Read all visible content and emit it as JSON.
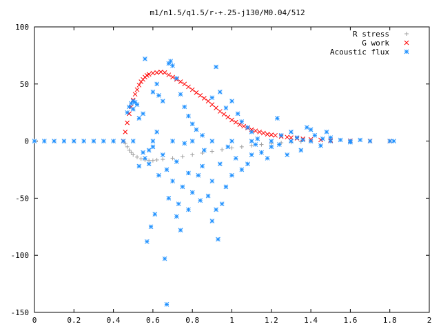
{
  "chart_data": {
    "type": "scatter",
    "title": "m1/n1.5/q1.5/r-+.25-j130/M0.04/512",
    "xlabel": "",
    "ylabel": "",
    "xlim": [
      0,
      2
    ],
    "ylim": [
      -150,
      100
    ],
    "xticks": [
      0,
      0.2,
      0.4,
      0.6,
      0.8,
      1,
      1.2,
      1.4,
      1.6,
      1.8,
      2
    ],
    "xtick_labels": [
      "0",
      "0.2",
      "0.4",
      "0.6",
      "0.8",
      "1",
      "1.2",
      "1.4",
      "1.6",
      "1.8",
      "2"
    ],
    "yticks": [
      -150,
      -100,
      -50,
      0,
      50,
      100
    ],
    "ytick_labels": [
      "-150",
      "-100",
      "-50",
      "0",
      "50",
      "100"
    ],
    "grid": false,
    "legend_position": "top-right",
    "series": [
      {
        "name": "R stress",
        "marker": "plus",
        "color": "#a0a0a0",
        "points": [
          [
            0.0,
            0
          ],
          [
            0.1,
            0
          ],
          [
            0.2,
            0
          ],
          [
            0.3,
            0
          ],
          [
            0.4,
            0
          ],
          [
            0.45,
            0
          ],
          [
            0.46,
            -2
          ],
          [
            0.47,
            -5
          ],
          [
            0.48,
            -8
          ],
          [
            0.49,
            -10
          ],
          [
            0.5,
            -12
          ],
          [
            0.52,
            -14
          ],
          [
            0.54,
            -15.5
          ],
          [
            0.56,
            -16.5
          ],
          [
            0.58,
            -17
          ],
          [
            0.6,
            -17
          ],
          [
            0.62,
            -16.5
          ],
          [
            0.65,
            -16
          ],
          [
            0.7,
            -15
          ],
          [
            0.75,
            -13.5
          ],
          [
            0.8,
            -12
          ],
          [
            0.85,
            -10.5
          ],
          [
            0.9,
            -9
          ],
          [
            0.95,
            -7.5
          ],
          [
            1.0,
            -6
          ],
          [
            1.05,
            -5
          ],
          [
            1.1,
            -4
          ],
          [
            1.15,
            -3
          ],
          [
            1.2,
            -2
          ],
          [
            1.25,
            -1.5
          ],
          [
            1.3,
            -1
          ],
          [
            1.35,
            -0.5
          ],
          [
            1.4,
            -0.3
          ],
          [
            1.5,
            0
          ],
          [
            1.6,
            0
          ],
          [
            1.7,
            0
          ],
          [
            1.8,
            0
          ]
        ]
      },
      {
        "name": "G work",
        "marker": "cross",
        "color": "#ff0000",
        "points": [
          [
            0.45,
            0
          ],
          [
            0.46,
            8
          ],
          [
            0.47,
            16
          ],
          [
            0.48,
            24
          ],
          [
            0.49,
            30
          ],
          [
            0.5,
            36
          ],
          [
            0.51,
            41
          ],
          [
            0.52,
            45
          ],
          [
            0.53,
            49
          ],
          [
            0.54,
            52
          ],
          [
            0.55,
            54
          ],
          [
            0.56,
            56
          ],
          [
            0.57,
            57.5
          ],
          [
            0.58,
            58.5
          ],
          [
            0.6,
            59.5
          ],
          [
            0.62,
            60
          ],
          [
            0.64,
            60.5
          ],
          [
            0.66,
            60
          ],
          [
            0.68,
            58
          ],
          [
            0.7,
            56
          ],
          [
            0.72,
            54
          ],
          [
            0.74,
            52
          ],
          [
            0.76,
            50
          ],
          [
            0.78,
            47.5
          ],
          [
            0.8,
            45
          ],
          [
            0.82,
            42.5
          ],
          [
            0.84,
            40
          ],
          [
            0.86,
            37.5
          ],
          [
            0.88,
            35
          ],
          [
            0.9,
            32
          ],
          [
            0.92,
            29
          ],
          [
            0.94,
            26
          ],
          [
            0.96,
            23.5
          ],
          [
            0.98,
            21
          ],
          [
            1.0,
            18.5
          ],
          [
            1.02,
            16.5
          ],
          [
            1.04,
            14.5
          ],
          [
            1.06,
            13
          ],
          [
            1.08,
            11.5
          ],
          [
            1.1,
            10
          ],
          [
            1.12,
            9
          ],
          [
            1.14,
            8
          ],
          [
            1.16,
            7
          ],
          [
            1.18,
            6
          ],
          [
            1.2,
            5.5
          ],
          [
            1.22,
            5
          ],
          [
            1.25,
            4
          ],
          [
            1.28,
            3.5
          ],
          [
            1.3,
            3
          ],
          [
            1.33,
            2.5
          ],
          [
            1.36,
            2
          ],
          [
            1.4,
            1.5
          ],
          [
            1.45,
            1
          ],
          [
            1.5,
            0.5
          ],
          [
            1.6,
            0.3
          ],
          [
            1.7,
            0.1
          ],
          [
            1.8,
            0
          ]
        ]
      },
      {
        "name": "Acoustic flux",
        "marker": "star",
        "color": "#1e90ff",
        "points": [
          [
            0.0,
            0
          ],
          [
            0.05,
            0
          ],
          [
            0.1,
            0
          ],
          [
            0.15,
            0
          ],
          [
            0.2,
            0
          ],
          [
            0.25,
            0
          ],
          [
            0.3,
            0
          ],
          [
            0.35,
            0
          ],
          [
            0.4,
            0
          ],
          [
            0.45,
            0
          ],
          [
            0.5,
            0
          ],
          [
            0.6,
            0
          ],
          [
            0.7,
            0
          ],
          [
            0.8,
            0
          ],
          [
            0.9,
            0
          ],
          [
            1.0,
            0
          ],
          [
            1.1,
            0
          ],
          [
            1.2,
            0
          ],
          [
            1.3,
            0
          ],
          [
            1.4,
            0
          ],
          [
            1.5,
            0
          ],
          [
            1.6,
            0
          ],
          [
            1.7,
            0
          ],
          [
            1.8,
            0
          ],
          [
            1.82,
            0
          ],
          [
            0.47,
            25
          ],
          [
            0.48,
            30
          ],
          [
            0.49,
            33
          ],
          [
            0.5,
            35
          ],
          [
            0.51,
            34
          ],
          [
            0.52,
            32
          ],
          [
            0.5,
            28
          ],
          [
            0.53,
            20
          ],
          [
            0.55,
            24
          ],
          [
            0.56,
            72
          ],
          [
            0.6,
            43
          ],
          [
            0.62,
            50
          ],
          [
            0.63,
            40
          ],
          [
            0.65,
            35
          ],
          [
            0.68,
            68
          ],
          [
            0.69,
            70
          ],
          [
            0.7,
            66
          ],
          [
            0.72,
            55
          ],
          [
            0.74,
            41
          ],
          [
            0.76,
            30
          ],
          [
            0.78,
            22
          ],
          [
            0.8,
            15
          ],
          [
            0.82,
            10
          ],
          [
            0.85,
            5
          ],
          [
            0.9,
            38
          ],
          [
            0.92,
            65
          ],
          [
            0.94,
            43
          ],
          [
            0.97,
            29
          ],
          [
            1.0,
            35
          ],
          [
            1.03,
            24
          ],
          [
            1.05,
            17
          ],
          [
            1.08,
            12
          ],
          [
            1.1,
            8
          ],
          [
            1.12,
            -3
          ],
          [
            1.15,
            -10
          ],
          [
            1.18,
            -15
          ],
          [
            1.2,
            -5
          ],
          [
            1.23,
            20
          ],
          [
            1.25,
            5
          ],
          [
            1.28,
            -12
          ],
          [
            1.3,
            8
          ],
          [
            1.33,
            3
          ],
          [
            1.35,
            -8
          ],
          [
            1.38,
            12
          ],
          [
            1.4,
            10
          ],
          [
            1.42,
            5
          ],
          [
            1.45,
            -4
          ],
          [
            1.48,
            8
          ],
          [
            1.5,
            3
          ],
          [
            0.55,
            -10
          ],
          [
            0.58,
            -20
          ],
          [
            0.6,
            -5
          ],
          [
            0.62,
            8
          ],
          [
            0.65,
            -12
          ],
          [
            0.67,
            -25
          ],
          [
            0.7,
            -35
          ],
          [
            0.72,
            -18
          ],
          [
            0.75,
            -40
          ],
          [
            0.78,
            -28
          ],
          [
            0.8,
            -45
          ],
          [
            0.83,
            -30
          ],
          [
            0.85,
            -22
          ],
          [
            0.88,
            -48
          ],
          [
            0.9,
            -35
          ],
          [
            0.92,
            -60
          ],
          [
            0.94,
            -20
          ],
          [
            0.97,
            -40
          ],
          [
            1.0,
            -30
          ],
          [
            1.02,
            -15
          ],
          [
            1.05,
            -25
          ],
          [
            1.08,
            -20
          ],
          [
            1.1,
            -12
          ],
          [
            0.57,
            -88
          ],
          [
            0.59,
            -75
          ],
          [
            0.61,
            -64
          ],
          [
            0.66,
            -103
          ],
          [
            0.67,
            -143
          ],
          [
            0.72,
            -66
          ],
          [
            0.74,
            -78
          ],
          [
            0.93,
            -86
          ],
          [
            0.9,
            -70
          ],
          [
            0.95,
            -55
          ],
          [
            0.63,
            -30
          ],
          [
            0.68,
            -50
          ],
          [
            0.73,
            -55
          ],
          [
            0.78,
            -60
          ],
          [
            0.84,
            -52
          ],
          [
            0.53,
            -22
          ],
          [
            0.56,
            -15
          ],
          [
            0.58,
            -8
          ],
          [
            0.76,
            -2
          ],
          [
            0.86,
            -8
          ],
          [
            0.98,
            -5
          ],
          [
            1.13,
            2
          ],
          [
            1.24,
            -3
          ],
          [
            1.36,
            1
          ],
          [
            1.46,
            2
          ],
          [
            1.55,
            1
          ],
          [
            1.6,
            -1
          ],
          [
            1.65,
            1
          ]
        ]
      }
    ]
  }
}
